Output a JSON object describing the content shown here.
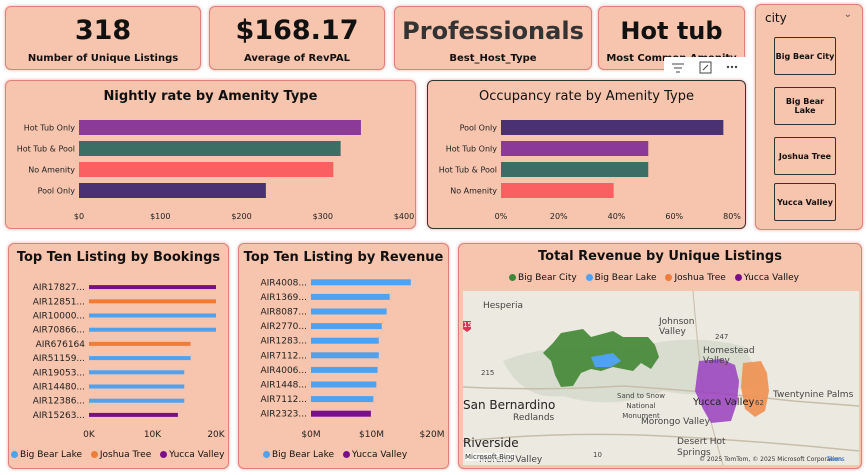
{
  "kpis": [
    {
      "value": "318",
      "label": "Number of Unique Listings"
    },
    {
      "value": "$168.17",
      "label": "Average of RevPAL"
    },
    {
      "value": "Professionals",
      "label": "Best_Host_Type"
    },
    {
      "value": "Hot tub",
      "label": "Most Common Amenity"
    }
  ],
  "visual_header_icons": [
    "filter-icon",
    "focus-mode-icon",
    "more-options-icon"
  ],
  "slicer": {
    "title": "city",
    "items": [
      "Big Bear City",
      "Big Bear Lake",
      "Joshua Tree",
      "Yucca Valley"
    ]
  },
  "colors": {
    "big_bear_city": "#3a8a3a",
    "big_bear_lake": "#4ea2f0",
    "joshua_tree": "#f07c3a",
    "yucca_valley": "#7a0f8c",
    "card_bg": "#f7c4ad"
  },
  "chart_data": [
    {
      "type": "bar",
      "orientation": "horizontal",
      "title": "Nightly rate by Amenity Type",
      "categories": [
        "Hot Tub Only",
        "Hot Tub & Pool",
        "No Amenity",
        "Pool Only"
      ],
      "values": [
        347,
        322,
        313,
        230
      ],
      "bar_colors": [
        "#8b3a9a",
        "#3d6e66",
        "#fa5f62",
        "#4a3174"
      ],
      "ticks": [
        "$0",
        "$100",
        "$200",
        "$300",
        "$400"
      ],
      "xlim": [
        0,
        400
      ]
    },
    {
      "type": "bar",
      "orientation": "horizontal",
      "title": "Occupancy rate by Amenity Type",
      "categories": [
        "Pool Only",
        "Hot Tub Only",
        "Hot Tub & Pool",
        "No Amenity"
      ],
      "values": [
        0.77,
        0.51,
        0.51,
        0.39
      ],
      "bar_colors": [
        "#4a3174",
        "#8b3a9a",
        "#3d6e66",
        "#fa5f62"
      ],
      "ticks": [
        "0%",
        "20%",
        "40%",
        "60%",
        "80%"
      ],
      "xlim": [
        0,
        0.8
      ]
    },
    {
      "type": "bar",
      "orientation": "horizontal",
      "title": "Top Ten Listing by Bookings",
      "categories": [
        "AIR17827...",
        "AIR12851...",
        "AIR10000...",
        "AIR70866...",
        "AIR676164",
        "AIR51159...",
        "AIR19053...",
        "AIR14480...",
        "AIR12386...",
        "AIR15263..."
      ],
      "values": [
        20000,
        20000,
        20000,
        20000,
        16000,
        16000,
        15000,
        15000,
        15000,
        14000
      ],
      "city": [
        "yucca_valley",
        "joshua_tree",
        "big_bear_lake",
        "big_bear_lake",
        "joshua_tree",
        "big_bear_lake",
        "big_bear_lake",
        "big_bear_lake",
        "big_bear_lake",
        "yucca_valley"
      ],
      "ticks": [
        "0K",
        "10K",
        "20K"
      ],
      "xlim": [
        0,
        20000
      ],
      "legend": [
        "Big Bear Lake",
        "Joshua Tree",
        "Yucca Valley"
      ]
    },
    {
      "type": "bar",
      "orientation": "horizontal",
      "title": "Top Ten Listing by Revenue",
      "categories": [
        "AIR4008...",
        "AIR1369...",
        "AIR8087...",
        "AIR2770...",
        "AIR1283...",
        "AIR7112...",
        "AIR4006...",
        "AIR1448...",
        "AIR7112...",
        "AIR2323..."
      ],
      "values": [
        16500000,
        13000000,
        12500000,
        11700000,
        11200000,
        11200000,
        11000000,
        10800000,
        10300000,
        9900000
      ],
      "city": [
        "big_bear_lake",
        "big_bear_lake",
        "big_bear_lake",
        "big_bear_lake",
        "big_bear_lake",
        "big_bear_lake",
        "big_bear_lake",
        "big_bear_lake",
        "big_bear_lake",
        "yucca_valley"
      ],
      "ticks": [
        "$0M",
        "$10M",
        "$20M"
      ],
      "xlim": [
        0,
        20000000
      ],
      "legend": [
        "Big Bear Lake",
        "Yucca Valley"
      ]
    }
  ],
  "map": {
    "title": "Total Revenue by Unique Listings",
    "legend": [
      "Big Bear City",
      "Big Bear Lake",
      "Joshua Tree",
      "Yucca Valley"
    ],
    "places": [
      "Hesperia",
      "Johnson Valley",
      "Homestead Valley",
      "San Bernardino",
      "Redlands",
      "Sand to Snow National Monument",
      "Yucca Valley",
      "Twentynine Palms",
      "Riverside",
      "Morongo Valley",
      "Desert Hot Springs",
      "Moreno Valley"
    ],
    "highways": [
      "15",
      "215",
      "247",
      "62",
      "10"
    ],
    "attribution": "© 2025 TomTom, © 2025 Microsoft Corporation",
    "terms": "Terms",
    "bing": "Microsoft Bing"
  }
}
